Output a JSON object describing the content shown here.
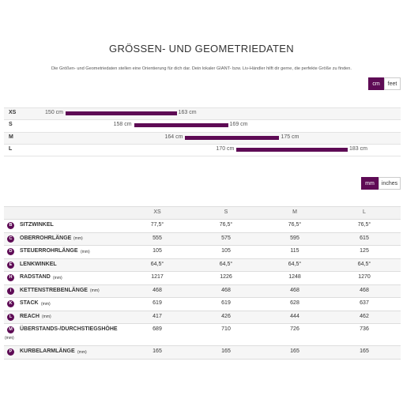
{
  "header": {
    "title": "GRÖSSEN- UND GEOMETRIEDATEN",
    "description": "Die Größen- und Geometriedaten stellen eine Orientierung für dich dar. Dein lokaler GIANT- bzw. Liv-Händler hilft dir gerne, die perfekte Größe zu finden."
  },
  "size_toggle": {
    "options": [
      "cm",
      "feet"
    ]
  },
  "size_ranges": [
    {
      "size": "XS",
      "min": 150,
      "max": 163,
      "min_label": "150 cm",
      "max_label": "163 cm"
    },
    {
      "size": "S",
      "min": 158,
      "max": 169,
      "min_label": "158 cm",
      "max_label": "169 cm"
    },
    {
      "size": "M",
      "min": 164,
      "max": 175,
      "min_label": "164 cm",
      "max_label": "175 cm"
    },
    {
      "size": "L",
      "min": 170,
      "max": 183,
      "min_label": "170 cm",
      "max_label": "183 cm"
    }
  ],
  "unit_toggle": {
    "options": [
      "mm",
      "inches"
    ]
  },
  "table": {
    "columns": [
      "XS",
      "S",
      "M",
      "L"
    ],
    "rows": [
      {
        "letter": "B",
        "name": "SITZWINKEL",
        "unit": null,
        "values": [
          "77,5°",
          "76,5°",
          "76,5°",
          "76,5°"
        ]
      },
      {
        "letter": "C",
        "name": "OBERROHRLÄNGE",
        "unit": "(mm)",
        "values": [
          "555",
          "575",
          "595",
          "615"
        ]
      },
      {
        "letter": "D",
        "name": "STEUERROHRLÄNGE",
        "unit": "(mm)",
        "values": [
          "105",
          "105",
          "115",
          "125"
        ]
      },
      {
        "letter": "E",
        "name": "LENKWINKEL",
        "unit": null,
        "values": [
          "64,5°",
          "64,5°",
          "64,5°",
          "64,5°"
        ]
      },
      {
        "letter": "H",
        "name": "RADSTAND",
        "unit": "(mm)",
        "values": [
          "1217",
          "1226",
          "1248",
          "1270"
        ]
      },
      {
        "letter": "I",
        "name": "KETTENSTREBENLÄNGE",
        "unit": "(mm)",
        "values": [
          "468",
          "468",
          "468",
          "468"
        ]
      },
      {
        "letter": "K",
        "name": "STACK",
        "unit": "(mm)",
        "values": [
          "619",
          "619",
          "628",
          "637"
        ]
      },
      {
        "letter": "L",
        "name": "REACH",
        "unit": "(mm)",
        "values": [
          "417",
          "426",
          "444",
          "462"
        ]
      },
      {
        "letter": "M",
        "name": "ÜBERSTANDS-/DURCHSTIEGSHÖHE",
        "unit": "(mm)",
        "values": [
          "689",
          "710",
          "726",
          "736"
        ]
      },
      {
        "letter": "P",
        "name": "KURBELARMLÄNGE",
        "unit": "(mm)",
        "values": [
          "165",
          "165",
          "165",
          "165"
        ]
      }
    ]
  }
}
